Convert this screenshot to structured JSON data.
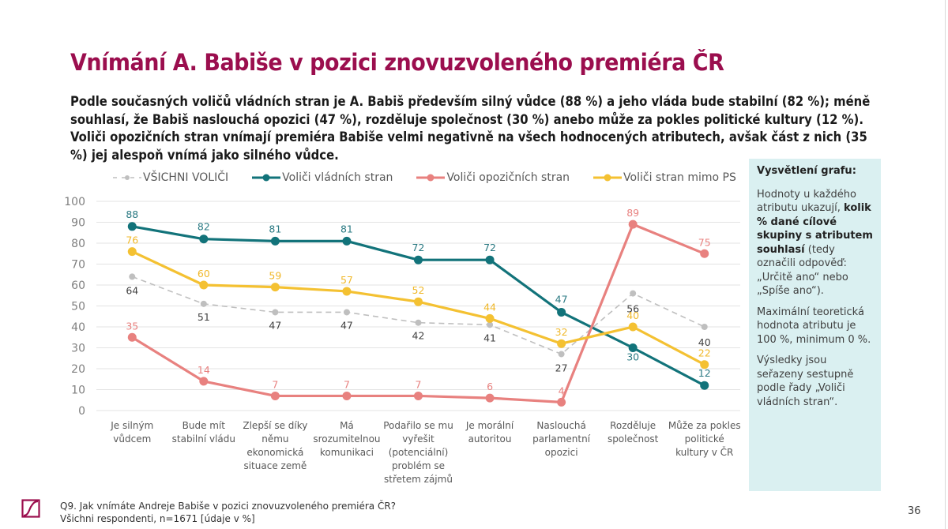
{
  "slide": {
    "title": "Vnímání A. Babiše v pozici znovuzvoleného premiéra ČR",
    "lead": "Podle současných voličů vládních stran je A. Babiš především silný vůdce (88 %) a jeho vláda bude stabilní (82 %); méně souhlasí, že Babiš naslouchá opozici (47 %), rozděluje společnost (30 %) anebo může za pokles politické kultury (12 %). Voliči opozičních stran vnímají premiéra Babiše velmi negativně na všech hodnocených atributech, avšak část z nich (35 %) jej alespoň vnímá jako silného vůdce.",
    "page_number": "36"
  },
  "info_box": {
    "heading": "Vysvětlení grafu:",
    "p1_pre": "Hodnoty u každého atributu ukazují, ",
    "p1_bold": "kolik % dané cílové skupiny s atributem souhlasí",
    "p1_post": " (tedy označili odpověď: „Určitě ano“ nebo „Spíše ano“).",
    "p2": "Maximální teoretická hodnota atributu je 100 %, minimum 0 %.",
    "p3": "Výsledky jsou seřazeny sestupně podle řady „Voliči vládních stran“."
  },
  "footer": {
    "question": "Q9. Jak vnímáte Andreje Babiše v pozici znovuzvoleného premiéra ČR?",
    "base": "Všichni respondenti, n=1671 [údaje v %]",
    "logo_icon": "stem-logo-icon",
    "brand_color": "#9b0e4e"
  },
  "chart_data": {
    "type": "line",
    "title": "",
    "xlabel": "",
    "ylabel": "",
    "ylim": [
      0,
      100
    ],
    "yticks": [
      0,
      10,
      20,
      30,
      40,
      50,
      60,
      70,
      80,
      90,
      100
    ],
    "grid": true,
    "legend_position": "top",
    "categories": [
      [
        "Je silným",
        "vůdcem"
      ],
      [
        "Bude mít",
        "stabilní vládu"
      ],
      [
        "Zlepší se díky",
        "němu",
        "ekonomická",
        "situace země"
      ],
      [
        "Má",
        "srozumitelnou",
        "komunikaci"
      ],
      [
        "Podařilo se mu",
        "vyřešit",
        "(potenciální)",
        "problém se",
        "střetem zájmů"
      ],
      [
        "Je morální",
        "autoritou"
      ],
      [
        "Naslouchá",
        "parlamentní",
        "opozici"
      ],
      [
        "Rozděluje",
        "společnost"
      ],
      [
        "Může za pokles",
        "politické",
        "kultury v ČR"
      ]
    ],
    "series": [
      {
        "name": "VŠICHNI VOLIČI",
        "color": "#bfbfbf",
        "label_color": "#404040",
        "dashed": true,
        "values": [
          64,
          51,
          47,
          47,
          42,
          41,
          27,
          56,
          40
        ]
      },
      {
        "name": "Voliči vládních stran",
        "color": "#12737a",
        "label_color": "#2b7a83",
        "dashed": false,
        "values": [
          88,
          82,
          81,
          81,
          72,
          72,
          47,
          30,
          12
        ]
      },
      {
        "name": "Voliči opozičních stran",
        "color": "#e8817f",
        "label_color": "#e8817f",
        "dashed": false,
        "values": [
          35,
          14,
          7,
          7,
          7,
          6,
          4,
          89,
          75
        ]
      },
      {
        "name": "Voliči stran mimo PS",
        "color": "#f4c132",
        "label_color": "#f0b82a",
        "dashed": false,
        "values": [
          76,
          60,
          59,
          57,
          52,
          44,
          32,
          40,
          22
        ]
      }
    ]
  }
}
